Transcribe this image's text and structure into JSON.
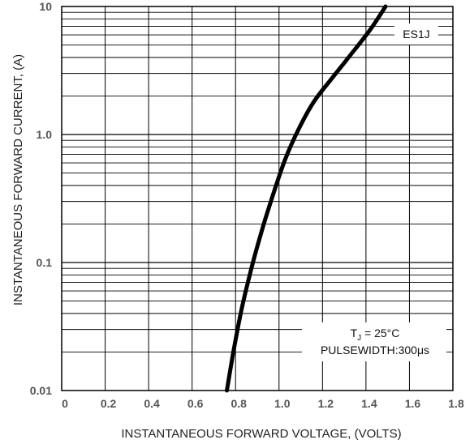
{
  "chart_data": {
    "type": "line",
    "xlabel": "INSTANTANEOUS FORWARD VOLTAGE, (VOLTS)",
    "ylabel": "INSTANTANEOUS  FORWARD CURRENT, (A)",
    "xlim": [
      0,
      1.8
    ],
    "ylim": [
      0.01,
      10
    ],
    "y_scale": "log",
    "grid": true,
    "x_ticks": [
      "0",
      "0.2",
      "0.4",
      "0.6",
      "0.8",
      "1.0",
      "1.2",
      "1.4",
      "1.6",
      "1.8"
    ],
    "y_ticks": [
      "0.01",
      "0.1",
      "1.0",
      "10"
    ],
    "series": [
      {
        "name": "ES1J",
        "color": "#000000",
        "x": [
          0.76,
          0.79,
          0.83,
          0.88,
          0.93,
          0.98,
          1.03,
          1.09,
          1.16,
          1.24,
          1.33,
          1.42,
          1.49
        ],
        "y": [
          0.01,
          0.02,
          0.045,
          0.1,
          0.2,
          0.37,
          0.65,
          1.1,
          1.8,
          2.7,
          4.2,
          6.6,
          10
        ]
      }
    ],
    "annotations": {
      "series_label": "ES1J",
      "tj_prefix": "T",
      "tj_sub": "J",
      "tj_rest": " = 25°C",
      "pulse": "PULSEWIDTH:300μs"
    }
  }
}
